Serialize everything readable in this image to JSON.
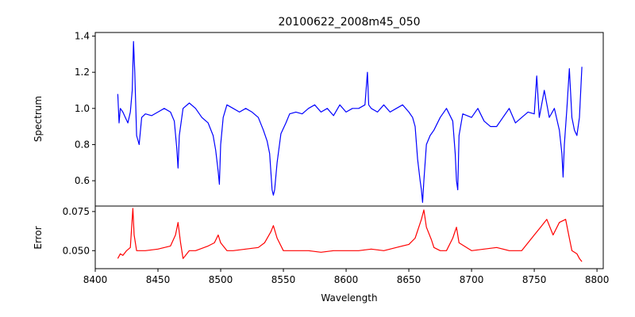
{
  "chart_data": [
    {
      "type": "line",
      "panel": "spectrum",
      "title": "20100622_2008m45_050",
      "ylabel": "Spectrum",
      "xlabel": "",
      "xlim": [
        8400,
        8805
      ],
      "ylim": [
        0.46,
        1.42
      ],
      "yticks": [
        0.6,
        0.8,
        1.0,
        1.2,
        1.4
      ],
      "ytick_labels": [
        "0.6",
        "0.8",
        "1.0",
        "1.2",
        "1.4"
      ],
      "color": "#0000ff",
      "grid": false,
      "x_range": [
        8418,
        8788
      ],
      "anchors": [
        [
          8418,
          1.08
        ],
        [
          8419,
          0.92
        ],
        [
          8420,
          1.0
        ],
        [
          8422,
          0.98
        ],
        [
          8424,
          0.95
        ],
        [
          8426,
          0.92
        ],
        [
          8428,
          0.98
        ],
        [
          8429.5,
          1.1
        ],
        [
          8430.5,
          1.37
        ],
        [
          8431.5,
          1.2
        ],
        [
          8433,
          0.85
        ],
        [
          8435,
          0.8
        ],
        [
          8437,
          0.95
        ],
        [
          8440,
          0.97
        ],
        [
          8445,
          0.96
        ],
        [
          8450,
          0.98
        ],
        [
          8455,
          1.0
        ],
        [
          8460,
          0.98
        ],
        [
          8463,
          0.93
        ],
        [
          8465,
          0.78
        ],
        [
          8466,
          0.67
        ],
        [
          8467,
          0.85
        ],
        [
          8470,
          1.0
        ],
        [
          8475,
          1.03
        ],
        [
          8480,
          1.0
        ],
        [
          8485,
          0.95
        ],
        [
          8490,
          0.92
        ],
        [
          8494,
          0.85
        ],
        [
          8496,
          0.77
        ],
        [
          8498,
          0.65
        ],
        [
          8499,
          0.58
        ],
        [
          8500,
          0.8
        ],
        [
          8502,
          0.95
        ],
        [
          8505,
          1.02
        ],
        [
          8510,
          1.0
        ],
        [
          8515,
          0.98
        ],
        [
          8520,
          1.0
        ],
        [
          8525,
          0.98
        ],
        [
          8530,
          0.95
        ],
        [
          8534,
          0.88
        ],
        [
          8537,
          0.82
        ],
        [
          8539,
          0.75
        ],
        [
          8541,
          0.55
        ],
        [
          8542,
          0.52
        ],
        [
          8543,
          0.55
        ],
        [
          8545,
          0.7
        ],
        [
          8548,
          0.86
        ],
        [
          8552,
          0.92
        ],
        [
          8555,
          0.97
        ],
        [
          8560,
          0.98
        ],
        [
          8565,
          0.97
        ],
        [
          8570,
          1.0
        ],
        [
          8575,
          1.02
        ],
        [
          8580,
          0.98
        ],
        [
          8585,
          1.0
        ],
        [
          8590,
          0.96
        ],
        [
          8595,
          1.02
        ],
        [
          8600,
          0.98
        ],
        [
          8605,
          1.0
        ],
        [
          8610,
          1.0
        ],
        [
          8615,
          1.02
        ],
        [
          8617,
          1.2
        ],
        [
          8618,
          1.02
        ],
        [
          8620,
          1.0
        ],
        [
          8625,
          0.98
        ],
        [
          8630,
          1.02
        ],
        [
          8635,
          0.98
        ],
        [
          8640,
          1.0
        ],
        [
          8645,
          1.02
        ],
        [
          8650,
          0.98
        ],
        [
          8653,
          0.95
        ],
        [
          8655,
          0.9
        ],
        [
          8657,
          0.72
        ],
        [
          8659,
          0.6
        ],
        [
          8660,
          0.55
        ],
        [
          8661,
          0.48
        ],
        [
          8662,
          0.6
        ],
        [
          8664,
          0.8
        ],
        [
          8667,
          0.85
        ],
        [
          8670,
          0.88
        ],
        [
          8675,
          0.95
        ],
        [
          8680,
          1.0
        ],
        [
          8685,
          0.93
        ],
        [
          8687,
          0.75
        ],
        [
          8688,
          0.6
        ],
        [
          8689,
          0.55
        ],
        [
          8690,
          0.85
        ],
        [
          8693,
          0.97
        ],
        [
          8700,
          0.95
        ],
        [
          8705,
          1.0
        ],
        [
          8710,
          0.93
        ],
        [
          8715,
          0.9
        ],
        [
          8720,
          0.9
        ],
        [
          8725,
          0.95
        ],
        [
          8730,
          1.0
        ],
        [
          8735,
          0.92
        ],
        [
          8740,
          0.95
        ],
        [
          8745,
          0.98
        ],
        [
          8750,
          0.97
        ],
        [
          8752,
          1.18
        ],
        [
          8754,
          0.95
        ],
        [
          8758,
          1.1
        ],
        [
          8762,
          0.95
        ],
        [
          8766,
          1.0
        ],
        [
          8770,
          0.88
        ],
        [
          8772,
          0.75
        ],
        [
          8773,
          0.62
        ],
        [
          8774,
          0.8
        ],
        [
          8776,
          1.0
        ],
        [
          8778,
          1.22
        ],
        [
          8780,
          0.95
        ],
        [
          8782,
          0.88
        ],
        [
          8784,
          0.85
        ],
        [
          8786,
          0.95
        ],
        [
          8788,
          1.23
        ]
      ]
    },
    {
      "type": "line",
      "panel": "error",
      "title": "",
      "ylabel": "Error",
      "xlabel": "Wavelength",
      "xlim": [
        8400,
        8805
      ],
      "ylim": [
        0.0385,
        0.0785
      ],
      "yticks": [
        0.05,
        0.075
      ],
      "ytick_labels": [
        "0.050",
        "0.075"
      ],
      "xticks": [
        8400,
        8450,
        8500,
        8550,
        8600,
        8650,
        8700,
        8750,
        8800
      ],
      "xtick_labels": [
        "8400",
        "8450",
        "8500",
        "8550",
        "8600",
        "8650",
        "8700",
        "8750",
        "8800"
      ],
      "color": "#ff0000",
      "grid": false,
      "x_range": [
        8418,
        8788
      ],
      "anchors": [
        [
          8418,
          0.045
        ],
        [
          8420,
          0.048
        ],
        [
          8422,
          0.047
        ],
        [
          8425,
          0.05
        ],
        [
          8428,
          0.052
        ],
        [
          8430,
          0.077
        ],
        [
          8431,
          0.06
        ],
        [
          8433,
          0.05
        ],
        [
          8440,
          0.05
        ],
        [
          8450,
          0.051
        ],
        [
          8460,
          0.053
        ],
        [
          8464,
          0.06
        ],
        [
          8466,
          0.068
        ],
        [
          8468,
          0.055
        ],
        [
          8470,
          0.045
        ],
        [
          8475,
          0.05
        ],
        [
          8480,
          0.05
        ],
        [
          8490,
          0.053
        ],
        [
          8495,
          0.055
        ],
        [
          8498,
          0.06
        ],
        [
          8500,
          0.055
        ],
        [
          8505,
          0.05
        ],
        [
          8510,
          0.05
        ],
        [
          8520,
          0.051
        ],
        [
          8530,
          0.052
        ],
        [
          8535,
          0.055
        ],
        [
          8540,
          0.062
        ],
        [
          8542,
          0.066
        ],
        [
          8545,
          0.058
        ],
        [
          8550,
          0.05
        ],
        [
          8560,
          0.05
        ],
        [
          8570,
          0.05
        ],
        [
          8580,
          0.049
        ],
        [
          8590,
          0.05
        ],
        [
          8600,
          0.05
        ],
        [
          8610,
          0.05
        ],
        [
          8620,
          0.051
        ],
        [
          8630,
          0.05
        ],
        [
          8640,
          0.052
        ],
        [
          8650,
          0.054
        ],
        [
          8655,
          0.058
        ],
        [
          8660,
          0.07
        ],
        [
          8662,
          0.076
        ],
        [
          8664,
          0.065
        ],
        [
          8668,
          0.057
        ],
        [
          8670,
          0.052
        ],
        [
          8675,
          0.05
        ],
        [
          8680,
          0.05
        ],
        [
          8685,
          0.058
        ],
        [
          8688,
          0.065
        ],
        [
          8690,
          0.055
        ],
        [
          8700,
          0.05
        ],
        [
          8710,
          0.051
        ],
        [
          8720,
          0.052
        ],
        [
          8730,
          0.05
        ],
        [
          8740,
          0.05
        ],
        [
          8745,
          0.055
        ],
        [
          8750,
          0.06
        ],
        [
          8755,
          0.065
        ],
        [
          8760,
          0.07
        ],
        [
          8765,
          0.06
        ],
        [
          8770,
          0.068
        ],
        [
          8775,
          0.07
        ],
        [
          8778,
          0.058
        ],
        [
          8780,
          0.05
        ],
        [
          8784,
          0.048
        ],
        [
          8786,
          0.045
        ],
        [
          8788,
          0.043
        ]
      ]
    }
  ]
}
